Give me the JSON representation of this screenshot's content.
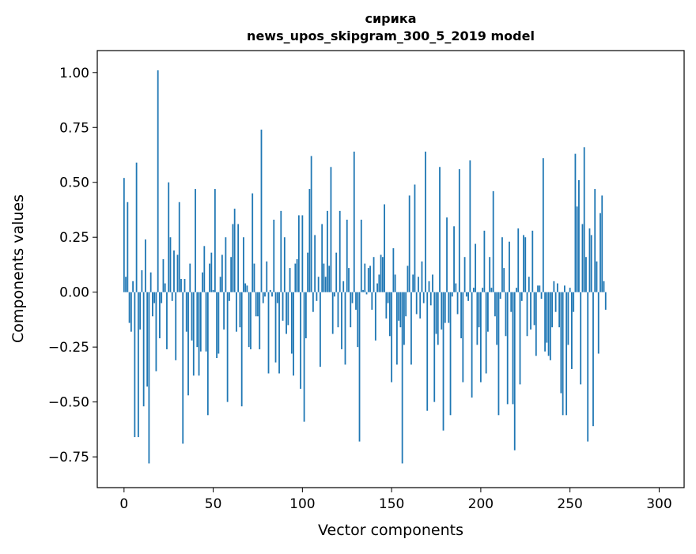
{
  "chart_data": {
    "type": "bar",
    "title_line1": "сирика",
    "title_line2": "news_upos_skipgram_300_5_2019 model",
    "xlabel": "Vector components",
    "ylabel": "Components values",
    "xlim": [
      -15,
      314
    ],
    "ylim": [
      -0.89,
      1.1
    ],
    "xticks": [
      0,
      50,
      100,
      150,
      200,
      250,
      300
    ],
    "xtick_labels": [
      "0",
      "50",
      "100",
      "150",
      "200",
      "250",
      "300"
    ],
    "yticks": [
      -0.75,
      -0.5,
      -0.25,
      0.0,
      0.25,
      0.5,
      0.75,
      1.0
    ],
    "ytick_labels": [
      "−0.75",
      "−0.50",
      "−0.25",
      "0.00",
      "0.25",
      "0.50",
      "0.75",
      "1.00"
    ],
    "bar_color": "#1f77b4",
    "series": [
      {
        "name": "components",
        "values": [
          0.52,
          0.07,
          0.41,
          -0.14,
          -0.18,
          0.05,
          -0.66,
          0.59,
          -0.66,
          -0.17,
          0.1,
          -0.52,
          0.24,
          -0.43,
          -0.78,
          0.09,
          -0.11,
          -0.05,
          -0.36,
          1.01,
          -0.21,
          -0.05,
          0.15,
          0.04,
          -0.26,
          0.5,
          0.25,
          -0.04,
          0.19,
          -0.31,
          0.17,
          0.41,
          0.06,
          -0.69,
          0.06,
          -0.18,
          -0.47,
          0.13,
          -0.22,
          -0.38,
          0.47,
          -0.25,
          -0.38,
          -0.27,
          0.09,
          0.21,
          -0.27,
          -0.56,
          0.13,
          0.18,
          0.01,
          0.47,
          -0.3,
          -0.28,
          0.07,
          0.17,
          -0.17,
          0.25,
          -0.5,
          -0.04,
          0.16,
          0.31,
          0.38,
          -0.18,
          0.31,
          -0.16,
          -0.52,
          0.25,
          0.04,
          0.03,
          -0.25,
          -0.26,
          0.45,
          0.13,
          -0.11,
          -0.11,
          -0.26,
          0.74,
          -0.05,
          -0.02,
          0.14,
          -0.37,
          0.01,
          -0.02,
          0.33,
          -0.32,
          -0.05,
          -0.37,
          0.37,
          -0.13,
          0.25,
          -0.19,
          -0.15,
          0.11,
          -0.28,
          -0.38,
          0.13,
          0.15,
          0.35,
          -0.44,
          0.35,
          -0.59,
          -0.21,
          0.18,
          0.47,
          0.62,
          -0.09,
          0.26,
          -0.04,
          0.07,
          -0.34,
          0.31,
          0.13,
          0.07,
          0.37,
          0.12,
          0.57,
          -0.19,
          -0.02,
          0.18,
          -0.16,
          0.37,
          -0.26,
          0.05,
          -0.33,
          0.33,
          0.11,
          -0.16,
          -0.05,
          0.64,
          -0.08,
          -0.25,
          -0.68,
          0.33,
          0.01,
          0.13,
          -0.01,
          0.11,
          0.12,
          -0.08,
          0.16,
          -0.22,
          0.04,
          0.08,
          0.17,
          0.16,
          0.4,
          -0.12,
          -0.05,
          -0.2,
          -0.41,
          0.2,
          0.08,
          -0.33,
          -0.13,
          -0.16,
          -0.78,
          -0.24,
          -0.11,
          0.12,
          0.44,
          -0.33,
          0.08,
          0.49,
          -0.1,
          0.07,
          -0.12,
          0.14,
          -0.05,
          0.64,
          -0.54,
          0.05,
          -0.06,
          0.08,
          -0.5,
          -0.19,
          -0.24,
          0.57,
          -0.17,
          -0.63,
          -0.14,
          0.34,
          -0.14,
          -0.56,
          -0.02,
          0.3,
          0.04,
          -0.1,
          0.56,
          -0.21,
          -0.41,
          0.16,
          -0.02,
          -0.04,
          0.6,
          -0.48,
          0.02,
          0.22,
          -0.24,
          -0.16,
          -0.41,
          0.02,
          0.28,
          -0.37,
          -0.18,
          0.16,
          0.02,
          0.46,
          -0.11,
          -0.24,
          -0.56,
          -0.03,
          0.25,
          0.11,
          -0.2,
          -0.51,
          0.23,
          -0.09,
          -0.51,
          -0.72,
          0.02,
          0.29,
          -0.42,
          -0.04,
          0.26,
          0.25,
          -0.2,
          0.07,
          -0.17,
          0.28,
          -0.15,
          -0.29,
          0.03,
          0.03,
          -0.03,
          0.61,
          -0.27,
          -0.23,
          -0.29,
          -0.31,
          -0.16,
          0.05,
          -0.09,
          0.04,
          -0.16,
          -0.46,
          -0.56,
          0.03,
          -0.56,
          -0.24,
          0.02,
          -0.35,
          -0.09,
          0.63,
          0.39,
          0.51,
          -0.42,
          0.31,
          0.66,
          0.16,
          -0.68,
          0.29,
          0.26,
          -0.61,
          0.47,
          0.14,
          -0.28,
          0.36,
          0.44,
          0.05,
          -0.08
        ]
      }
    ]
  }
}
